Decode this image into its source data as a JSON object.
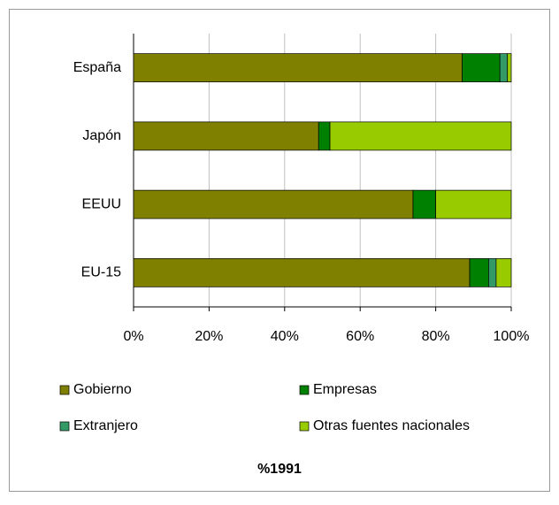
{
  "chart_data": {
    "type": "stacked-barh",
    "title": "%1991",
    "categories": [
      "España",
      "Japón",
      "EEUU",
      "EU-15"
    ],
    "series": [
      {
        "name": "Gobierno",
        "color": "#808000",
        "values": [
          87,
          49,
          74,
          89
        ]
      },
      {
        "name": "Empresas",
        "color": "#008000",
        "values": [
          10,
          3,
          6,
          5
        ]
      },
      {
        "name": "Extranjero",
        "color": "#339966",
        "values": [
          2,
          0,
          0,
          2
        ]
      },
      {
        "name": "Otras fuentes nacionales",
        "color": "#99cc00",
        "values": [
          1,
          48,
          20,
          4
        ]
      }
    ],
    "xlim": [
      0,
      100
    ],
    "xticks": [
      {
        "value": 0,
        "label": "0%"
      },
      {
        "value": 20,
        "label": "20%"
      },
      {
        "value": 40,
        "label": "40%"
      },
      {
        "value": 60,
        "label": "60%"
      },
      {
        "value": 80,
        "label": "80%"
      },
      {
        "value": 100,
        "label": "100%"
      }
    ],
    "grid": true
  }
}
